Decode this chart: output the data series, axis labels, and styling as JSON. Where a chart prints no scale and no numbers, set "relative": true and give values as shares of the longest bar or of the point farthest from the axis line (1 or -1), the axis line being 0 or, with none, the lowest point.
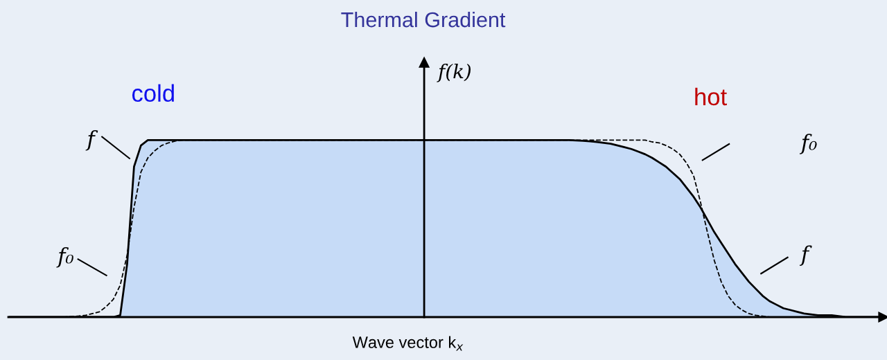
{
  "chart_data": {
    "type": "line",
    "relative": true,
    "title": "Thermal Gradient",
    "xlabel": "Wave vector k$_{x}$",
    "ylabel": "f(k)",
    "categories": [
      null,
      null,
      null,
      null,
      null,
      null,
      null,
      null,
      null,
      null,
      null,
      null,
      null,
      null,
      null,
      null,
      null,
      null,
      null,
      null,
      null,
      null,
      null,
      null,
      null,
      null,
      null,
      null,
      null,
      null,
      null,
      null,
      null,
      null,
      null,
      null,
      null,
      null,
      null,
      null,
      null,
      null,
      null,
      null,
      null,
      null,
      null,
      null,
      null,
      null,
      null,
      null,
      null,
      null,
      null,
      null,
      null,
      null,
      null,
      null,
      null,
      null,
      null,
      null,
      null,
      null,
      null,
      null,
      null,
      null,
      null,
      null,
      null,
      null,
      null,
      null,
      null,
      null,
      null,
      null,
      null,
      null,
      null,
      null,
      null,
      null,
      null,
      null,
      null,
      null,
      null,
      null,
      null,
      null,
      null,
      null,
      null,
      null,
      null,
      null,
      null,
      null,
      null,
      null,
      null,
      null,
      null,
      null,
      null,
      null,
      null,
      null,
      null,
      null,
      null,
      null,
      null,
      null,
      null,
      null,
      null,
      null,
      null,
      null,
      null,
      null,
      null
    ],
    "series": [
      {
        "type": "area",
        "color": "#c6dbf7",
        "values": [
          0,
          0,
          0,
          0,
          0,
          0,
          0,
          0,
          0,
          0,
          0,
          0,
          0,
          0,
          0,
          0,
          0.01,
          0.3,
          0.85,
          0.97,
          1,
          1,
          1,
          1,
          1,
          1,
          1,
          1,
          1,
          1,
          1,
          1,
          1,
          1,
          1,
          1,
          1,
          1,
          1,
          1,
          1,
          1,
          1,
          1,
          1,
          1,
          1,
          1,
          1,
          1,
          1,
          1,
          1,
          1,
          1,
          1,
          1,
          1,
          1,
          1,
          1,
          1,
          1,
          1,
          1,
          1,
          1,
          1,
          1,
          1,
          1,
          1,
          1,
          1,
          1,
          1,
          1,
          1,
          1,
          1,
          1,
          1,
          0.998,
          0.996,
          0.993,
          0.99,
          0.985,
          0.98,
          0.97,
          0.96,
          0.95,
          0.935,
          0.92,
          0.9,
          0.875,
          0.85,
          0.815,
          0.78,
          0.73,
          0.68,
          0.62,
          0.55,
          0.48,
          0.42,
          0.36,
          0.3,
          0.25,
          0.2,
          0.16,
          0.12,
          0.09,
          0.07,
          0.05,
          0.04,
          0.03,
          0.02,
          0.015,
          0.01,
          0.01,
          0.01,
          0.005,
          0,
          0,
          0,
          0,
          0,
          0
        ]
      },
      {
        "color": "#000000",
        "line_style": "dashed",
        "values": [
          0,
          0,
          0,
          0,
          0,
          0,
          0,
          0,
          0,
          0.003,
          0.006,
          0.01,
          0.02,
          0.03,
          0.06,
          0.1,
          0.18,
          0.35,
          0.62,
          0.82,
          0.9,
          0.94,
          0.97,
          0.985,
          0.995,
          1,
          1,
          1,
          1,
          1,
          1,
          1,
          1,
          1,
          1,
          1,
          1,
          1,
          1,
          1,
          1,
          1,
          1,
          1,
          1,
          1,
          1,
          1,
          1,
          1,
          1,
          1,
          1,
          1,
          1,
          1,
          1,
          1,
          1,
          1,
          1,
          1,
          1,
          1,
          1,
          1,
          1,
          1,
          1,
          1,
          1,
          1,
          1,
          1,
          1,
          1,
          1,
          1,
          1,
          1,
          1,
          1,
          1,
          1,
          1,
          1,
          1,
          1,
          1,
          1,
          1,
          1,
          1,
          0.99,
          0.985,
          0.97,
          0.95,
          0.92,
          0.87,
          0.8,
          0.65,
          0.48,
          0.32,
          0.2,
          0.12,
          0.07,
          0.04,
          0.02,
          0.01,
          0.005,
          0,
          0,
          0,
          0,
          null,
          null,
          null,
          null,
          null,
          null,
          null,
          null,
          null,
          null,
          null,
          null,
          null
        ]
      }
    ],
    "annotations": [
      "cold",
      "hot",
      "f",
      "f₀",
      "f₀",
      "f"
    ]
  }
}
